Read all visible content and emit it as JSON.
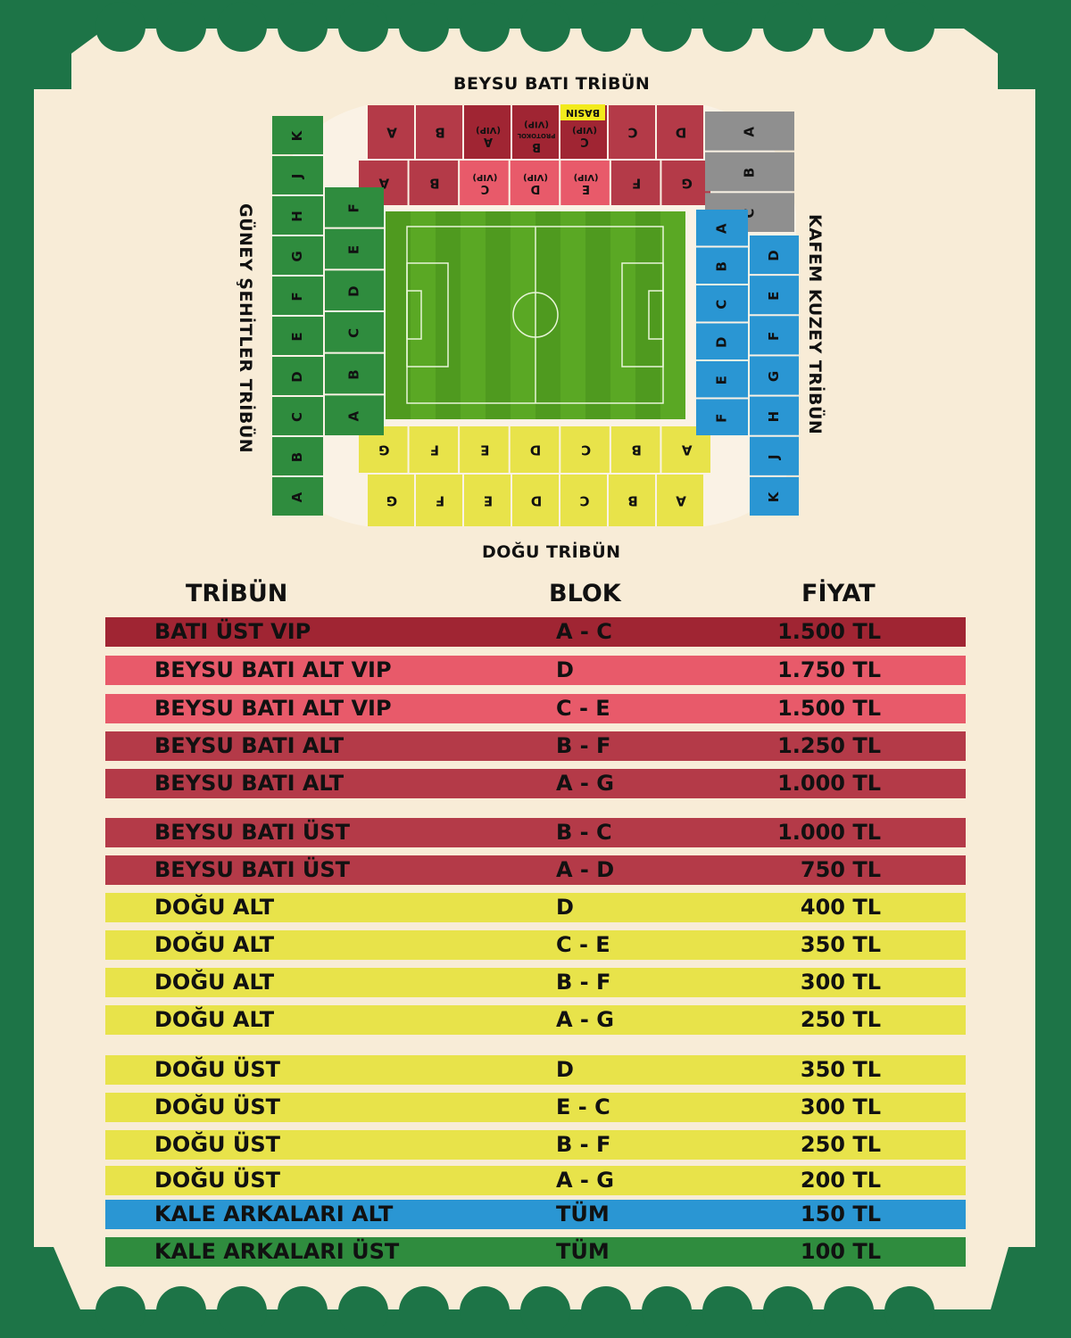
{
  "stands": {
    "west": "BEYSU BATI TRİBÜN",
    "east": "DOĞU TRİBÜN",
    "south": "GÜNEY ŞEHİTLER TRİBÜN",
    "north": "KAFEM KUZEY TRİBÜN"
  },
  "map": {
    "west_upper": [
      "A",
      "B",
      "A (VIP)",
      "B PROTOKOL (VIP)",
      "C (VIP)",
      "C",
      "D"
    ],
    "press_label": "BASIN",
    "west_lower": [
      "A",
      "B",
      "C (VIP)",
      "D (VIP)",
      "E (VIP)",
      "F",
      "G"
    ],
    "east_lower": [
      "G",
      "F",
      "E",
      "D",
      "C",
      "B",
      "A"
    ],
    "east_upper": [
      "G",
      "F",
      "E",
      "D",
      "C",
      "B",
      "A"
    ],
    "south_outer": [
      "K",
      "J",
      "H",
      "G",
      "F",
      "E",
      "D",
      "C",
      "B",
      "A"
    ],
    "south_inner": [
      "F",
      "E",
      "D",
      "C",
      "B",
      "A"
    ],
    "north_corner": [
      "A",
      "B",
      "C"
    ],
    "north_outer": [
      "D",
      "E",
      "F",
      "G",
      "H",
      "J",
      "K"
    ],
    "north_inner": [
      "A",
      "B",
      "C",
      "D",
      "E",
      "F"
    ]
  },
  "table": {
    "headers": {
      "tribune": "TRİBÜN",
      "block": "BLOK",
      "price": "FİYAT"
    },
    "rows": [
      {
        "tribune": "BATI ÜST VIP",
        "block": "A - C",
        "price": "1.500 TL",
        "color": "#a02533"
      },
      {
        "tribune": "BEYSU BATI ALT VIP",
        "block": "D",
        "price": "1.750 TL",
        "color": "#e85a6a"
      },
      {
        "tribune": "BEYSU BATI ALT VIP",
        "block": "C - E",
        "price": "1.500 TL",
        "color": "#e85a6a"
      },
      {
        "tribune": "BEYSU BATI ALT",
        "block": "B - F",
        "price": "1.250 TL",
        "color": "#b43a48"
      },
      {
        "tribune": "BEYSU BATI ALT",
        "block": "A - G",
        "price": "1.000 TL",
        "color": "#b43a48"
      },
      {
        "tribune": "BEYSU BATI ÜST",
        "block": "B - C",
        "price": "1.000 TL",
        "color": "#b43a48"
      },
      {
        "tribune": "BEYSU BATI ÜST",
        "block": "A - D",
        "price": "750 TL",
        "color": "#b43a48"
      },
      {
        "tribune": "DOĞU ALT",
        "block": "D",
        "price": "400 TL",
        "color": "#e8e34a"
      },
      {
        "tribune": "DOĞU ALT",
        "block": "C - E",
        "price": "350 TL",
        "color": "#e8e34a"
      },
      {
        "tribune": "DOĞU ALT",
        "block": "B - F",
        "price": "300 TL",
        "color": "#e8e34a"
      },
      {
        "tribune": "DOĞU ALT",
        "block": "A - G",
        "price": "250 TL",
        "color": "#e8e34a"
      },
      {
        "tribune": "DOĞU ÜST",
        "block": "D",
        "price": "350 TL",
        "color": "#e8e34a"
      },
      {
        "tribune": "DOĞU ÜST",
        "block": "E - C",
        "price": "300 TL",
        "color": "#e8e34a"
      },
      {
        "tribune": "DOĞU ÜST",
        "block": "B - F",
        "price": "250 TL",
        "color": "#e8e34a"
      },
      {
        "tribune": "DOĞU ÜST",
        "block": "A - G",
        "price": "200 TL",
        "color": "#e8e34a"
      },
      {
        "tribune": "KALE ARKALARI ALT",
        "block": "TÜM",
        "price": "150 TL",
        "color": "#2a96d3"
      },
      {
        "tribune": "KALE ARKALARI ÜST",
        "block": "TÜM",
        "price": "100 TL",
        "color": "#2f8c3e"
      }
    ]
  },
  "colors": {
    "background": "#1d7447",
    "ticket": "#f8ecd7",
    "west_upper": "#b43a48",
    "west_vip_upper": "#a02533",
    "west_vip_lower": "#e85a6a",
    "east": "#e8e34a",
    "south": "#2f8c3e",
    "north": "#2a96d3",
    "north_corner": "#8f8f8f",
    "press": "#f2ea1c",
    "pitch": "#4f9a1f"
  }
}
